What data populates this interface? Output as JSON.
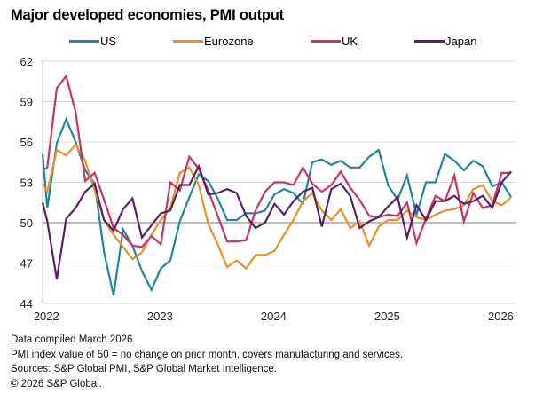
{
  "chart_data": {
    "type": "line",
    "title": "Major developed economies, PMI output",
    "xlabel": "",
    "ylabel": "",
    "ylim": [
      44,
      62
    ],
    "yticks": [
      44,
      47,
      50,
      53,
      56,
      59,
      62
    ],
    "xtick_labels": [
      "2022",
      "2023",
      "2024",
      "2025",
      "2026"
    ],
    "reference_line": 50,
    "grid": true,
    "legend_position": "top",
    "x": [
      "Dec 2021",
      "Jan 2022",
      "Feb 2022",
      "Mar 2022",
      "Apr 2022",
      "May 2022",
      "Jun 2022",
      "Jul 2022",
      "Aug 2022",
      "Sep 2022",
      "Oct 2022",
      "Nov 2022",
      "Dec 2022",
      "Jan 2023",
      "Feb 2023",
      "Mar 2023",
      "Apr 2023",
      "May 2023",
      "Jun 2023",
      "Jul 2023",
      "Aug 2023",
      "Sep 2023",
      "Oct 2023",
      "Nov 2023",
      "Dec 2023",
      "Jan 2024",
      "Feb 2024",
      "Mar 2024",
      "Apr 2024",
      "May 2024",
      "Jun 2024",
      "Jul 2024",
      "Aug 2024",
      "Sep 2024",
      "Oct 2024",
      "Nov 2024",
      "Dec 2024",
      "Jan 2025",
      "Feb 2025",
      "Mar 2025",
      "Apr 2025",
      "May 2025",
      "Jun 2025",
      "Jul 2025",
      "Aug 2025",
      "Sep 2025",
      "Oct 2025",
      "Nov 2025",
      "Dec 2025",
      "Jan 2026",
      "Feb 2026"
    ],
    "series": [
      {
        "name": "US",
        "color": "#1a8aa0",
        "values": [
          55.1,
          51.1,
          55.9,
          57.7,
          56.0,
          53.9,
          52.9,
          47.8,
          44.6,
          49.5,
          48.3,
          46.4,
          45.0,
          46.6,
          47.2,
          50.1,
          51.9,
          53.6,
          53.1,
          51.8,
          50.2,
          50.2,
          50.7,
          50.7,
          50.9,
          52.1,
          52.5,
          52.2,
          51.4,
          54.5,
          54.7,
          54.3,
          54.6,
          54.1,
          54.1,
          54.9,
          55.4,
          52.8,
          51.7,
          53.5,
          50.6,
          53.0,
          53.0,
          55.1,
          54.6,
          53.9,
          54.6,
          54.2,
          52.7,
          53.0,
          51.9
        ]
      },
      {
        "name": "Eurozone",
        "color": "#f0901e",
        "values": [
          52.9,
          52.3,
          55.4,
          55.0,
          55.8,
          54.6,
          52.4,
          50.2,
          49.1,
          48.2,
          47.3,
          47.8,
          49.1,
          50.2,
          51.1,
          53.7,
          54.1,
          52.8,
          49.9,
          48.4,
          46.7,
          47.2,
          46.6,
          47.6,
          47.6,
          47.9,
          49.1,
          50.2,
          51.6,
          52.2,
          50.9,
          50.2,
          51.0,
          49.6,
          50.1,
          48.3,
          49.7,
          50.2,
          50.2,
          50.9,
          50.4,
          50.2,
          50.6,
          50.9,
          51.0,
          51.3,
          52.5,
          52.8,
          51.6,
          51.3,
          51.9
        ]
      },
      {
        "name": "UK",
        "color": "#d0306a",
        "values": [
          53.9,
          54.1,
          60.0,
          60.9,
          58.2,
          53.1,
          53.7,
          51.7,
          49.6,
          49.1,
          48.3,
          48.2,
          49.0,
          48.4,
          53.0,
          52.4,
          54.9,
          54.0,
          52.4,
          50.5,
          48.6,
          48.6,
          48.7,
          50.9,
          52.3,
          53.0,
          53.0,
          52.8,
          54.1,
          52.9,
          52.3,
          52.8,
          53.8,
          52.6,
          51.7,
          50.5,
          50.4,
          50.6,
          50.5,
          51.5,
          48.5,
          50.3,
          52.0,
          51.6,
          53.5,
          50.1,
          52.2,
          51.1,
          51.3,
          53.7,
          53.7
        ]
      },
      {
        "name": "Japan",
        "color": "#5c1f63",
        "values": [
          51.5,
          50.1,
          45.8,
          50.3,
          51.1,
          52.3,
          52.9,
          50.2,
          49.4,
          51.0,
          51.8,
          48.9,
          49.8,
          50.7,
          50.9,
          52.8,
          52.8,
          54.2,
          52.1,
          52.2,
          52.5,
          52.2,
          50.5,
          49.6,
          50.0,
          51.4,
          50.6,
          51.6,
          52.3,
          52.6,
          49.7,
          52.5,
          52.9,
          52.0,
          49.6,
          50.1,
          50.4,
          51.2,
          51.9,
          48.9,
          51.3,
          50.2,
          51.6,
          51.6,
          52.0,
          51.4,
          51.6,
          52.0,
          51.1,
          53.0,
          53.8
        ]
      }
    ]
  },
  "footer": {
    "line1": "Data compiled March 2026.",
    "line2": "PMI index value of 50 = no change on prior month, covers manufacturing and services.",
    "line3": "Sources: S&P Global PMI, S&P Global Market Intelligence.",
    "line4": "© 2026 S&P Global."
  }
}
